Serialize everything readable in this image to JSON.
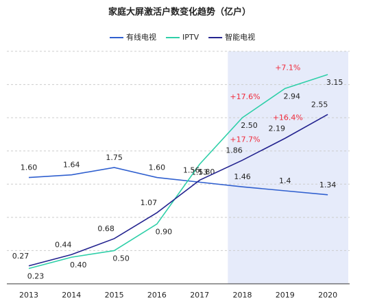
{
  "chart_data": {
    "type": "line",
    "title": "家庭大屏激活户数变化趋势（亿户）",
    "categories": [
      "2013",
      "2014",
      "2015",
      "2016",
      "2017",
      "2018",
      "2019",
      "2020"
    ],
    "series": [
      {
        "name": "有线电视",
        "color": "#2f5fcf",
        "values": [
          1.6,
          1.64,
          1.75,
          1.6,
          1.53,
          1.46,
          1.4,
          1.34
        ],
        "value_labels": [
          "1.60",
          "1.64",
          "1.75",
          "1.60",
          "1.53",
          "1.46",
          "1.4",
          "1.34"
        ]
      },
      {
        "name": "IPTV",
        "color": "#2ecfa8",
        "values": [
          0.23,
          0.4,
          0.5,
          0.9,
          1.8,
          2.5,
          2.94,
          3.15
        ],
        "value_labels": [
          "0.23",
          "0.40",
          "0.50",
          "0.90",
          "1.80",
          "2.50",
          "2.94",
          "3.15"
        ],
        "growth_labels": [
          null,
          null,
          null,
          null,
          null,
          "+17.6%",
          "+7.1%",
          null
        ]
      },
      {
        "name": "智能电视",
        "color": "#23238f",
        "values": [
          0.27,
          0.44,
          0.68,
          1.07,
          1.56,
          1.86,
          2.19,
          2.55
        ],
        "value_labels": [
          "0.27",
          "0.44",
          "0.68",
          "1.07",
          "1.56",
          "1.86",
          "2.19",
          "2.55"
        ],
        "growth_labels": [
          null,
          null,
          null,
          null,
          null,
          "+17.7%",
          "+16.4%",
          null
        ]
      }
    ],
    "ylim": [
      0,
      3.5
    ],
    "yticks": [
      0,
      0.5,
      1,
      1.5,
      2,
      2.5,
      3,
      3.5
    ],
    "grid": true,
    "highlight_from": "2018",
    "growth_color": "#f02a3a"
  }
}
